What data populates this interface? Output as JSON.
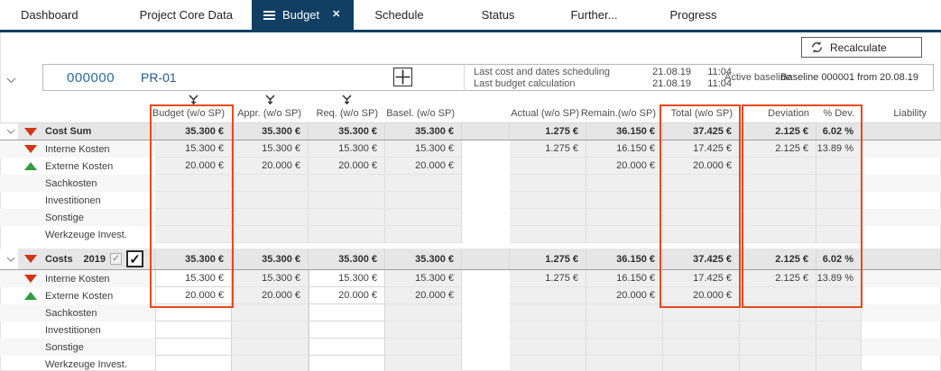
{
  "colors": {
    "navy": "#113f63",
    "orange": "#e64a19",
    "red": "#d13511",
    "green": "#2f9e3f",
    "blue": "#2b6a9d"
  },
  "tab_bar": {
    "tabs": [
      {
        "label": "Dashboard",
        "active": false
      },
      {
        "label": "Project Core Data",
        "active": false
      },
      {
        "label": "Budget",
        "active": true,
        "menu_icon": true,
        "close_icon": "✕"
      },
      {
        "label": "Schedule",
        "active": false
      },
      {
        "label": "Status",
        "active": false
      },
      {
        "label": "Further...",
        "active": false
      },
      {
        "label": "Progress",
        "active": false
      }
    ]
  },
  "toolbar": {
    "recalculate": "Recalculate"
  },
  "project": {
    "id": "000000",
    "code": "PR-01",
    "stats": [
      {
        "label": "Last cost and dates scheduling",
        "date": "21.08.19",
        "time": "11:04"
      },
      {
        "label": "Last budget calculation",
        "date": "21.08.19",
        "time": "11:04"
      }
    ],
    "active_baseline_label": "Active baseline",
    "active_baseline_value": "Baseline 000001 from 20.08.19"
  },
  "table": {
    "columns": [
      {
        "key": "budget",
        "label": "Budget (w/o SP)",
        "filter": true
      },
      {
        "key": "appr",
        "label": "Appr. (w/o SP)",
        "filter": true
      },
      {
        "key": "req",
        "label": "Req. (w/o SP)",
        "filter": true
      },
      {
        "key": "basel",
        "label": "Basel. (w/o SP)",
        "filter": false
      },
      {
        "key": "actual",
        "label": "Actual (w/o SP)",
        "filter": false
      },
      {
        "key": "remain",
        "label": "Remain.(w/o SP)",
        "filter": false
      },
      {
        "key": "total",
        "label": "Total (w/o SP)",
        "filter": false
      },
      {
        "key": "dev",
        "label": "Deviation",
        "filter": false
      },
      {
        "key": "devpct",
        "label": "% Dev.",
        "filter": false
      },
      {
        "key": "liability",
        "label": "Liability",
        "filter": false
      }
    ],
    "sections": [
      {
        "name": "Cost Sum",
        "year": null,
        "editable": false,
        "summary_trend": "down",
        "summary": {
          "budget": "35.300 €",
          "appr": "35.300 €",
          "req": "35.300 €",
          "basel": "35.300 €",
          "actual": "1.275 €",
          "remain": "36.150 €",
          "total": "37.425 €",
          "dev": "2.125 €",
          "devpct": "6.02 %"
        },
        "rows": [
          {
            "label": "Interne Kosten",
            "trend": "down",
            "values": {
              "budget": "15.300 €",
              "appr": "15.300 €",
              "req": "15.300 €",
              "basel": "15.300 €",
              "actual": "1.275 €",
              "remain": "16.150 €",
              "total": "17.425 €",
              "dev": "2.125 €",
              "devpct": "13.89 %"
            }
          },
          {
            "label": "Externe Kosten",
            "trend": "up",
            "values": {
              "budget": "20.000 €",
              "appr": "20.000 €",
              "req": "20.000 €",
              "basel": "20.000 €",
              "remain": "20.000 €",
              "total": "20.000 €"
            }
          },
          {
            "label": "Sachkosten",
            "trend": null,
            "values": {}
          },
          {
            "label": "Investitionen",
            "trend": null,
            "values": {}
          },
          {
            "label": "Sonstige",
            "trend": null,
            "values": {}
          },
          {
            "label": "Werkzeuge Invest.",
            "trend": null,
            "values": {}
          }
        ]
      },
      {
        "name": "Costs",
        "year": "2019",
        "editable": true,
        "summary_trend": "down",
        "checkbox_small_checked": "✓",
        "checkbox_big_checked": "✓",
        "summary": {
          "budget": "35.300 €",
          "appr": "35.300 €",
          "req": "35.300 €",
          "basel": "35.300 €",
          "actual": "1.275 €",
          "remain": "36.150 €",
          "total": "37.425 €",
          "dev": "2.125 €",
          "devpct": "6.02 %"
        },
        "rows": [
          {
            "label": "Interne Kosten",
            "trend": "down",
            "values": {
              "budget": "15.300 €",
              "appr": "15.300 €",
              "req": "15.300 €",
              "basel": "15.300 €",
              "actual": "1.275 €",
              "remain": "16.150 €",
              "total": "17.425 €",
              "dev": "2.125 €",
              "devpct": "13.89 %"
            }
          },
          {
            "label": "Externe Kosten",
            "trend": "up",
            "values": {
              "budget": "20.000 €",
              "appr": "20.000 €",
              "req": "20.000 €",
              "basel": "20.000 €",
              "remain": "20.000 €",
              "total": "20.000 €"
            }
          },
          {
            "label": "Sachkosten",
            "trend": null,
            "values": {}
          },
          {
            "label": "Investitionen",
            "trend": null,
            "values": {}
          },
          {
            "label": "Sonstige",
            "trend": null,
            "values": {}
          },
          {
            "label": "Werkzeuge Invest.",
            "trend": null,
            "values": {}
          }
        ]
      }
    ]
  },
  "highlights": {
    "color": "#e64a19",
    "regions": [
      "budget-column",
      "total-column",
      "deviation-and-percent-columns"
    ]
  }
}
